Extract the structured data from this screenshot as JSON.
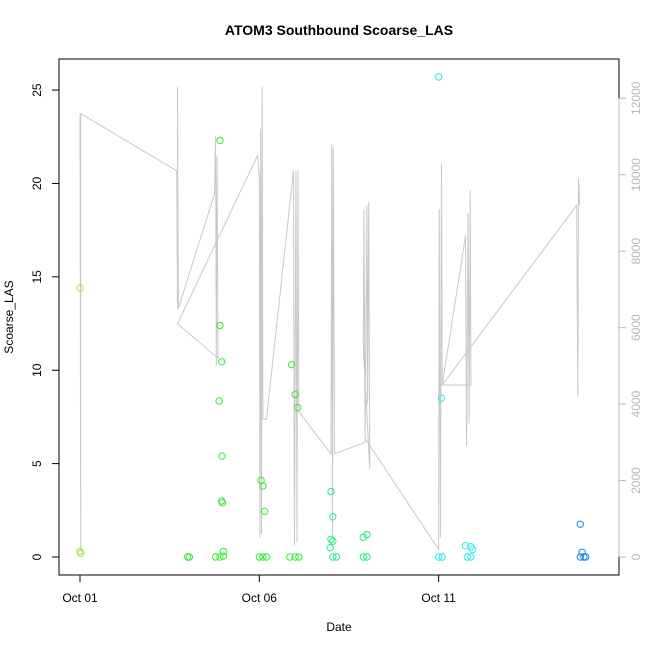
{
  "chart_data": {
    "type": "scatter",
    "title": "ATOM3 Southbound Scoarse_LAS",
    "xlabel": "Date",
    "ylabel": "Scoarse_LAS",
    "x_ticks": [
      {
        "label": "Oct 01",
        "day": 1
      },
      {
        "label": "Oct 06",
        "day": 6
      },
      {
        "label": "Oct 11",
        "day": 11
      }
    ],
    "xlim": [
      1,
      15.5
    ],
    "ylim": [
      0,
      25.7
    ],
    "y_ticks": [
      0,
      5,
      10,
      15,
      20,
      25
    ],
    "y2lim": [
      0,
      12400
    ],
    "y2_ticks": [
      0,
      2000,
      4000,
      6000,
      8000,
      10000,
      12000
    ],
    "colors": {
      "green_light": "#a6e830",
      "green": "#33ee33",
      "green_cyan": "#22ee88",
      "cyan": "#22eeee",
      "blue": "#1a88ee",
      "line": "#c8c8c8",
      "right_axis": "#b8b8b8"
    },
    "points": [
      {
        "x": 1.0,
        "y": 14.4,
        "c": "green_light"
      },
      {
        "x": 1.0,
        "y": 0.3,
        "c": "green_light"
      },
      {
        "x": 1.02,
        "y": 0.2,
        "c": "green_light"
      },
      {
        "x": 4.0,
        "y": 0.0,
        "c": "green"
      },
      {
        "x": 4.05,
        "y": 0.0,
        "c": "green"
      },
      {
        "x": 4.78,
        "y": 0.0,
        "c": "green"
      },
      {
        "x": 4.9,
        "y": 22.3,
        "c": "green"
      },
      {
        "x": 4.9,
        "y": 12.4,
        "c": "green"
      },
      {
        "x": 4.88,
        "y": 8.35,
        "c": "green"
      },
      {
        "x": 4.95,
        "y": 10.45,
        "c": "green"
      },
      {
        "x": 4.96,
        "y": 5.4,
        "c": "green"
      },
      {
        "x": 4.95,
        "y": 3.0,
        "c": "green"
      },
      {
        "x": 4.97,
        "y": 2.9,
        "c": "green"
      },
      {
        "x": 5.0,
        "y": 0.3,
        "c": "green"
      },
      {
        "x": 4.9,
        "y": 0.0,
        "c": "green"
      },
      {
        "x": 5.0,
        "y": 0.05,
        "c": "green"
      },
      {
        "x": 6.05,
        "y": 4.1,
        "c": "green"
      },
      {
        "x": 6.1,
        "y": 3.8,
        "c": "green"
      },
      {
        "x": 6.15,
        "y": 2.45,
        "c": "green"
      },
      {
        "x": 6.0,
        "y": 0.0,
        "c": "green"
      },
      {
        "x": 6.1,
        "y": 0.0,
        "c": "green"
      },
      {
        "x": 6.2,
        "y": 0.0,
        "c": "green"
      },
      {
        "x": 6.9,
        "y": 10.3,
        "c": "green"
      },
      {
        "x": 7.0,
        "y": 8.7,
        "c": "green"
      },
      {
        "x": 7.07,
        "y": 8.0,
        "c": "green"
      },
      {
        "x": 6.85,
        "y": 0.0,
        "c": "green"
      },
      {
        "x": 7.0,
        "y": 0.0,
        "c": "green"
      },
      {
        "x": 7.1,
        "y": 0.0,
        "c": "green"
      },
      {
        "x": 8.0,
        "y": 3.5,
        "c": "green_cyan"
      },
      {
        "x": 8.05,
        "y": 2.15,
        "c": "green_cyan"
      },
      {
        "x": 8.0,
        "y": 0.95,
        "c": "green_cyan"
      },
      {
        "x": 8.05,
        "y": 0.85,
        "c": "green_cyan"
      },
      {
        "x": 7.98,
        "y": 0.5,
        "c": "green_cyan"
      },
      {
        "x": 8.05,
        "y": 0.0,
        "c": "green_cyan"
      },
      {
        "x": 8.15,
        "y": 0.0,
        "c": "green_cyan"
      },
      {
        "x": 8.9,
        "y": 1.05,
        "c": "green_cyan"
      },
      {
        "x": 9.0,
        "y": 1.2,
        "c": "green_cyan"
      },
      {
        "x": 8.9,
        "y": 0.0,
        "c": "green_cyan"
      },
      {
        "x": 9.0,
        "y": 0.0,
        "c": "green_cyan"
      },
      {
        "x": 11.0,
        "y": 25.7,
        "c": "cyan"
      },
      {
        "x": 11.08,
        "y": 8.5,
        "c": "cyan"
      },
      {
        "x": 11.0,
        "y": 0.0,
        "c": "cyan"
      },
      {
        "x": 11.1,
        "y": 0.0,
        "c": "cyan"
      },
      {
        "x": 11.75,
        "y": 0.6,
        "c": "cyan"
      },
      {
        "x": 11.9,
        "y": 0.55,
        "c": "cyan"
      },
      {
        "x": 11.95,
        "y": 0.4,
        "c": "cyan"
      },
      {
        "x": 11.8,
        "y": 0.0,
        "c": "cyan"
      },
      {
        "x": 11.9,
        "y": 0.0,
        "c": "cyan"
      },
      {
        "x": 14.95,
        "y": 1.75,
        "c": "blue"
      },
      {
        "x": 15.0,
        "y": 0.25,
        "c": "blue"
      },
      {
        "x": 14.95,
        "y": 0.0,
        "c": "blue"
      },
      {
        "x": 15.05,
        "y": 0.0,
        "c": "blue"
      },
      {
        "x": 15.1,
        "y": 0.0,
        "c": "blue"
      }
    ],
    "line": [
      [
        1.0,
        11600
      ],
      [
        1.02,
        150
      ],
      [
        1.02,
        11600
      ],
      [
        3.7,
        10100
      ],
      [
        3.72,
        6500
      ],
      [
        3.72,
        12300
      ],
      [
        3.74,
        6500
      ],
      [
        4.75,
        9500
      ],
      [
        4.78,
        11000
      ],
      [
        4.8,
        5000
      ],
      [
        4.82,
        10500
      ],
      [
        4.85,
        5200
      ],
      [
        3.72,
        6100
      ],
      [
        5.95,
        10500
      ],
      [
        6.0,
        10000
      ],
      [
        6.02,
        500
      ],
      [
        6.04,
        11200
      ],
      [
        6.06,
        600
      ],
      [
        6.08,
        12300
      ],
      [
        6.1,
        3600
      ],
      [
        6.2,
        3600
      ],
      [
        6.95,
        10100
      ],
      [
        6.98,
        300
      ],
      [
        7.02,
        10100
      ],
      [
        7.05,
        400
      ],
      [
        7.08,
        10100
      ],
      [
        7.1,
        3800
      ],
      [
        8.0,
        2700
      ],
      [
        8.02,
        10800
      ],
      [
        8.04,
        500
      ],
      [
        8.06,
        10700
      ],
      [
        8.1,
        2700
      ],
      [
        8.95,
        3000
      ],
      [
        9.0,
        9200
      ],
      [
        9.02,
        4000
      ],
      [
        9.05,
        9300
      ],
      [
        9.08,
        2300
      ],
      [
        8.9,
        5500
      ],
      [
        8.92,
        9100
      ],
      [
        8.95,
        3100
      ],
      [
        11.0,
        200
      ],
      [
        11.02,
        9100
      ],
      [
        11.05,
        500
      ],
      [
        11.08,
        10300
      ],
      [
        11.1,
        4500
      ],
      [
        11.75,
        8400
      ],
      [
        11.78,
        2900
      ],
      [
        11.82,
        9000
      ],
      [
        11.85,
        3500
      ],
      [
        11.88,
        9600
      ],
      [
        11.9,
        4500
      ],
      [
        11.1,
        4500
      ],
      [
        14.85,
        9200
      ],
      [
        14.88,
        4200
      ],
      [
        14.9,
        9900
      ],
      [
        14.93,
        9200
      ]
    ]
  }
}
